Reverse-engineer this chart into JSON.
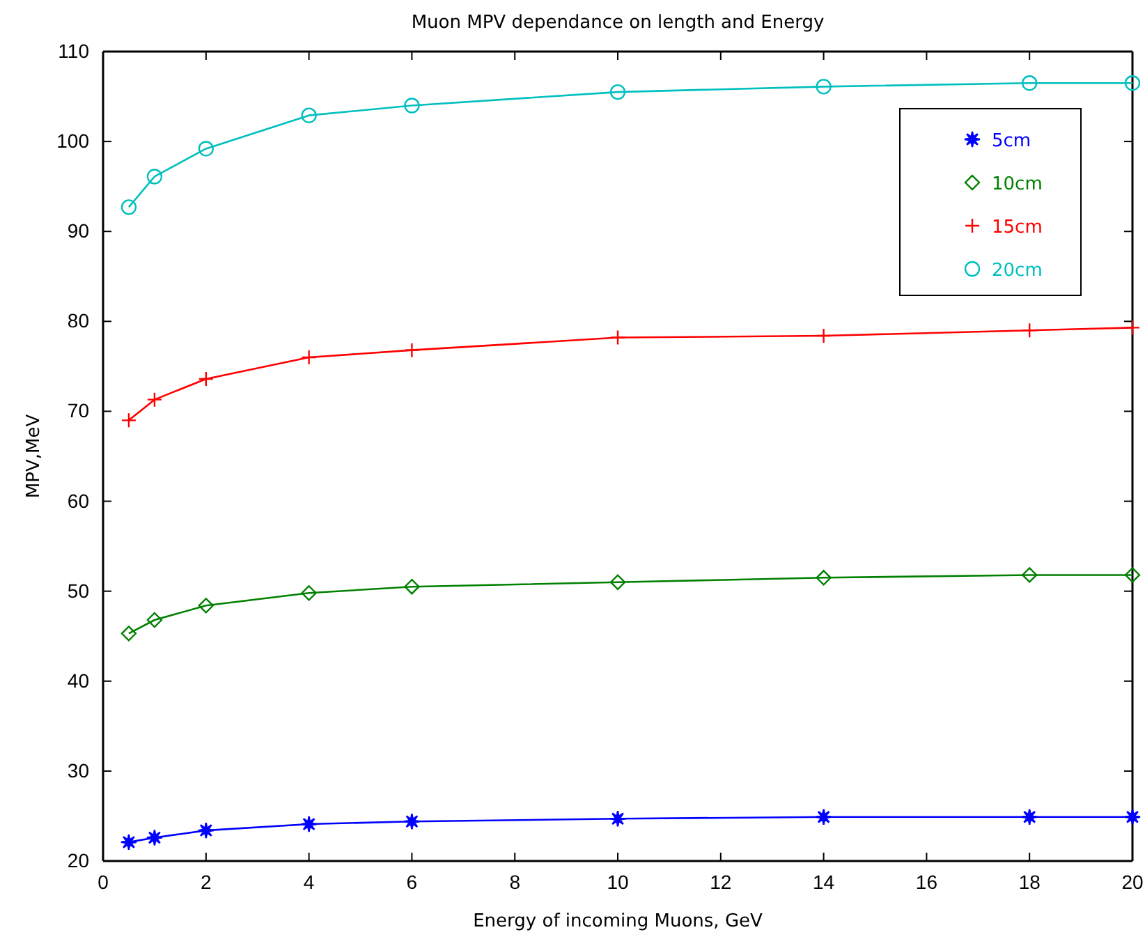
{
  "chart_data": {
    "type": "line",
    "title": "Muon MPV dependance on length and Energy",
    "xlabel": "Energy of incoming Muons, GeV",
    "ylabel": "MPV,MeV",
    "x": [
      0.5,
      1,
      2,
      4,
      6,
      10,
      14,
      18,
      20
    ],
    "series": [
      {
        "name": "5cm",
        "color": "#0000ff",
        "marker": "star",
        "values": [
          22.1,
          22.6,
          23.4,
          24.1,
          24.4,
          24.7,
          24.9,
          24.9,
          24.9
        ]
      },
      {
        "name": "10cm",
        "color": "#008000",
        "marker": "diamond",
        "values": [
          45.3,
          46.8,
          48.4,
          49.8,
          50.5,
          51.0,
          51.5,
          51.8,
          51.8
        ]
      },
      {
        "name": "15cm",
        "color": "#ff0000",
        "marker": "cross",
        "values": [
          69.0,
          71.3,
          73.6,
          76.0,
          76.8,
          78.2,
          78.4,
          79.0,
          79.3
        ]
      },
      {
        "name": "20cm",
        "color": "#00bfbf",
        "marker": "circle",
        "values": [
          92.7,
          96.1,
          99.2,
          102.9,
          104.0,
          105.5,
          106.1,
          106.5,
          106.5
        ]
      }
    ],
    "xlim": [
      0,
      20
    ],
    "xticks": [
      0,
      2,
      4,
      6,
      8,
      10,
      12,
      14,
      16,
      18,
      20
    ],
    "ylim": [
      20,
      110
    ],
    "yticks": [
      20,
      30,
      40,
      50,
      60,
      70,
      80,
      90,
      100,
      110
    ],
    "grid": false,
    "legend": "top right",
    "line_style": "solid"
  }
}
